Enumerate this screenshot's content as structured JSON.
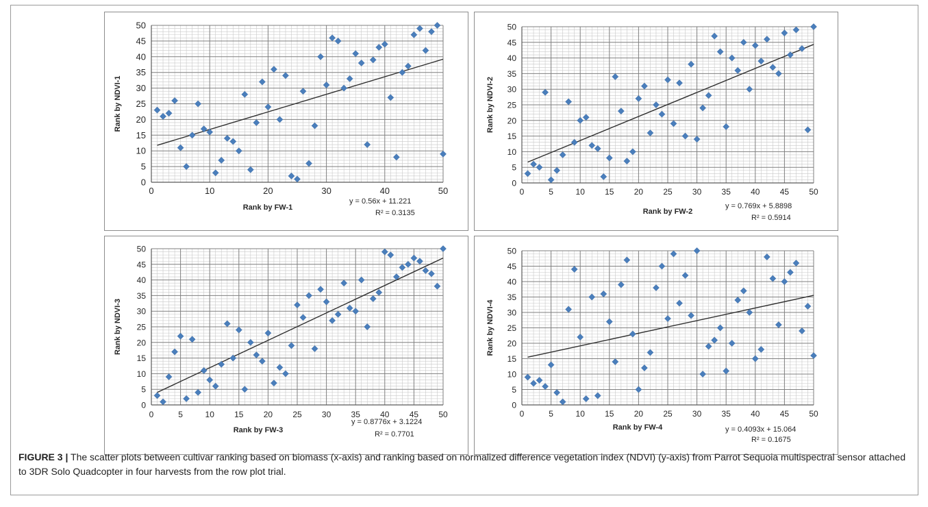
{
  "figure": {
    "caption_label": "FIGURE 3 |",
    "caption_text": "The scatter plots between cultivar ranking based on biomass (x-axis) and ranking based on normalized difference vegetation index (NDVI) (y-axis) from Parrot Sequoia multispectral sensor attached to 3DR Solo Quadcopter in four harvests from the row plot trial."
  },
  "colors": {
    "marker": "#4a7ebb",
    "trendline": "#2f2f2f",
    "major_grid": "#7f7f7f",
    "minor_grid": "#c8c8c8"
  },
  "chart_data": [
    {
      "type": "scatter",
      "xlabel": "Rank by FW-1",
      "ylabel": "Rank by NDVI-1",
      "xlim": [
        0,
        50
      ],
      "ylim": [
        0,
        50
      ],
      "xticks": [
        0,
        10,
        20,
        30,
        40,
        50
      ],
      "yticks": [
        0,
        5,
        10,
        15,
        20,
        25,
        30,
        35,
        40,
        45,
        50
      ],
      "grid": true,
      "equation": "y = 0.56x + 11.221",
      "r2": "R² = 0.3135",
      "trend": {
        "slope": 0.56,
        "intercept": 11.221
      },
      "points": [
        [
          1,
          23
        ],
        [
          2,
          21
        ],
        [
          3,
          22
        ],
        [
          4,
          26
        ],
        [
          5,
          11
        ],
        [
          6,
          5
        ],
        [
          7,
          15
        ],
        [
          8,
          25
        ],
        [
          9,
          17
        ],
        [
          10,
          16
        ],
        [
          11,
          3
        ],
        [
          12,
          7
        ],
        [
          13,
          14
        ],
        [
          14,
          13
        ],
        [
          15,
          10
        ],
        [
          16,
          28
        ],
        [
          17,
          4
        ],
        [
          18,
          19
        ],
        [
          19,
          32
        ],
        [
          20,
          24
        ],
        [
          21,
          36
        ],
        [
          22,
          20
        ],
        [
          23,
          34
        ],
        [
          24,
          2
        ],
        [
          25,
          1
        ],
        [
          26,
          29
        ],
        [
          27,
          6
        ],
        [
          28,
          18
        ],
        [
          29,
          40
        ],
        [
          30,
          31
        ],
        [
          31,
          46
        ],
        [
          32,
          45
        ],
        [
          33,
          30
        ],
        [
          34,
          33
        ],
        [
          35,
          41
        ],
        [
          36,
          38
        ],
        [
          37,
          12
        ],
        [
          38,
          39
        ],
        [
          39,
          43
        ],
        [
          40,
          44
        ],
        [
          41,
          27
        ],
        [
          42,
          8
        ],
        [
          43,
          35
        ],
        [
          44,
          37
        ],
        [
          45,
          47
        ],
        [
          46,
          49
        ],
        [
          47,
          42
        ],
        [
          48,
          48
        ],
        [
          49,
          50
        ],
        [
          50,
          9
        ]
      ]
    },
    {
      "type": "scatter",
      "xlabel": "Rank by FW-2",
      "ylabel": "Rank by NDVI-2",
      "xlim": [
        0,
        50
      ],
      "ylim": [
        0,
        50
      ],
      "xticks": [
        0,
        5,
        10,
        15,
        20,
        25,
        30,
        35,
        40,
        45,
        50
      ],
      "yticks": [
        0,
        5,
        10,
        15,
        20,
        25,
        30,
        35,
        40,
        45,
        50
      ],
      "grid": true,
      "equation": "y = 0.769x + 5.8898",
      "r2": "R² = 0.5914",
      "trend": {
        "slope": 0.769,
        "intercept": 5.8898
      },
      "points": [
        [
          1,
          3
        ],
        [
          2,
          6
        ],
        [
          3,
          5
        ],
        [
          4,
          29
        ],
        [
          5,
          1
        ],
        [
          6,
          4
        ],
        [
          7,
          9
        ],
        [
          8,
          26
        ],
        [
          9,
          13
        ],
        [
          10,
          20
        ],
        [
          11,
          21
        ],
        [
          12,
          12
        ],
        [
          13,
          11
        ],
        [
          14,
          2
        ],
        [
          15,
          8
        ],
        [
          16,
          34
        ],
        [
          17,
          23
        ],
        [
          18,
          7
        ],
        [
          19,
          10
        ],
        [
          20,
          27
        ],
        [
          21,
          31
        ],
        [
          22,
          16
        ],
        [
          23,
          25
        ],
        [
          24,
          22
        ],
        [
          25,
          33
        ],
        [
          26,
          19
        ],
        [
          27,
          32
        ],
        [
          28,
          15
        ],
        [
          29,
          38
        ],
        [
          30,
          14
        ],
        [
          31,
          24
        ],
        [
          32,
          28
        ],
        [
          33,
          47
        ],
        [
          34,
          42
        ],
        [
          35,
          18
        ],
        [
          36,
          40
        ],
        [
          37,
          36
        ],
        [
          38,
          45
        ],
        [
          39,
          30
        ],
        [
          40,
          44
        ],
        [
          41,
          39
        ],
        [
          42,
          46
        ],
        [
          43,
          37
        ],
        [
          44,
          35
        ],
        [
          45,
          48
        ],
        [
          46,
          41
        ],
        [
          47,
          49
        ],
        [
          48,
          43
        ],
        [
          49,
          17
        ],
        [
          50,
          50
        ]
      ]
    },
    {
      "type": "scatter",
      "xlabel": "Rank by FW-3",
      "ylabel": "Rank by NDVI-3",
      "xlim": [
        0,
        50
      ],
      "ylim": [
        0,
        50
      ],
      "xticks": [
        0,
        5,
        10,
        15,
        20,
        25,
        30,
        35,
        40,
        45,
        50
      ],
      "yticks": [
        0,
        5,
        10,
        15,
        20,
        25,
        30,
        35,
        40,
        45,
        50
      ],
      "grid": true,
      "equation": "y = 0.8776x + 3.1224",
      "r2": "R² = 0.7701",
      "trend": {
        "slope": 0.8776,
        "intercept": 3.1224
      },
      "points": [
        [
          1,
          3
        ],
        [
          2,
          1
        ],
        [
          3,
          9
        ],
        [
          4,
          17
        ],
        [
          5,
          22
        ],
        [
          6,
          2
        ],
        [
          7,
          21
        ],
        [
          8,
          4
        ],
        [
          9,
          11
        ],
        [
          10,
          8
        ],
        [
          11,
          6
        ],
        [
          12,
          13
        ],
        [
          13,
          26
        ],
        [
          14,
          15
        ],
        [
          15,
          24
        ],
        [
          16,
          5
        ],
        [
          17,
          20
        ],
        [
          18,
          16
        ],
        [
          19,
          14
        ],
        [
          20,
          23
        ],
        [
          21,
          7
        ],
        [
          22,
          12
        ],
        [
          23,
          10
        ],
        [
          24,
          19
        ],
        [
          25,
          32
        ],
        [
          26,
          28
        ],
        [
          27,
          35
        ],
        [
          28,
          18
        ],
        [
          29,
          37
        ],
        [
          30,
          33
        ],
        [
          31,
          27
        ],
        [
          32,
          29
        ],
        [
          33,
          39
        ],
        [
          34,
          31
        ],
        [
          35,
          30
        ],
        [
          36,
          40
        ],
        [
          37,
          25
        ],
        [
          38,
          34
        ],
        [
          39,
          36
        ],
        [
          40,
          49
        ],
        [
          41,
          48
        ],
        [
          42,
          41
        ],
        [
          43,
          44
        ],
        [
          44,
          45
        ],
        [
          45,
          47
        ],
        [
          46,
          46
        ],
        [
          47,
          43
        ],
        [
          48,
          42
        ],
        [
          49,
          38
        ],
        [
          50,
          50
        ]
      ]
    },
    {
      "type": "scatter",
      "xlabel": "Rank by FW-4",
      "ylabel": "Rank by NDVI-4",
      "xlim": [
        0,
        50
      ],
      "ylim": [
        0,
        50
      ],
      "xticks": [
        0,
        5,
        10,
        15,
        20,
        25,
        30,
        35,
        40,
        45,
        50
      ],
      "yticks": [
        0,
        5,
        10,
        15,
        20,
        25,
        30,
        35,
        40,
        45,
        50
      ],
      "grid": true,
      "equation": "y = 0.4093x + 15.064",
      "r2": "R² = 0.1675",
      "trend": {
        "slope": 0.4093,
        "intercept": 15.064
      },
      "points": [
        [
          1,
          9
        ],
        [
          2,
          7
        ],
        [
          3,
          8
        ],
        [
          4,
          6
        ],
        [
          5,
          13
        ],
        [
          6,
          4
        ],
        [
          7,
          1
        ],
        [
          8,
          31
        ],
        [
          9,
          44
        ],
        [
          10,
          22
        ],
        [
          11,
          2
        ],
        [
          12,
          35
        ],
        [
          13,
          3
        ],
        [
          14,
          36
        ],
        [
          15,
          27
        ],
        [
          16,
          14
        ],
        [
          17,
          39
        ],
        [
          18,
          47
        ],
        [
          19,
          23
        ],
        [
          20,
          5
        ],
        [
          21,
          12
        ],
        [
          22,
          17
        ],
        [
          23,
          38
        ],
        [
          24,
          45
        ],
        [
          25,
          28
        ],
        [
          26,
          49
        ],
        [
          27,
          33
        ],
        [
          28,
          42
        ],
        [
          29,
          29
        ],
        [
          30,
          50
        ],
        [
          31,
          10
        ],
        [
          32,
          19
        ],
        [
          33,
          21
        ],
        [
          34,
          25
        ],
        [
          35,
          11
        ],
        [
          36,
          20
        ],
        [
          37,
          34
        ],
        [
          38,
          37
        ],
        [
          39,
          30
        ],
        [
          40,
          15
        ],
        [
          41,
          18
        ],
        [
          42,
          48
        ],
        [
          43,
          41
        ],
        [
          44,
          26
        ],
        [
          45,
          40
        ],
        [
          46,
          43
        ],
        [
          47,
          46
        ],
        [
          48,
          24
        ],
        [
          49,
          32
        ],
        [
          50,
          16
        ]
      ]
    }
  ]
}
